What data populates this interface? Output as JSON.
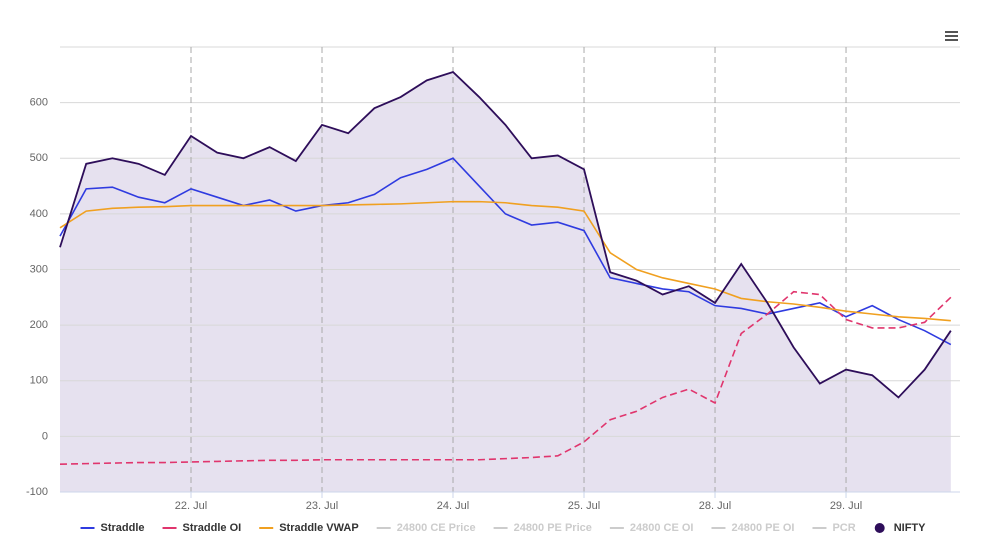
{
  "chart_data": {
    "type": "line",
    "x": [
      0,
      0.2,
      0.4,
      0.6,
      0.8,
      1,
      1.2,
      1.4,
      1.6,
      1.8,
      2,
      2.2,
      2.4,
      2.6,
      2.8,
      3,
      3.2,
      3.4,
      3.6,
      3.8,
      4,
      4.2,
      4.4,
      4.6,
      4.8,
      5,
      5.2,
      5.4,
      5.6,
      5.8,
      6,
      6.2,
      6.4,
      6.6,
      6.8
    ],
    "xlim": [
      0,
      6.87
    ],
    "xticks": [
      {
        "value": 1,
        "label": "22. Jul"
      },
      {
        "value": 2,
        "label": "23. Jul"
      },
      {
        "value": 3,
        "label": "24. Jul"
      },
      {
        "value": 4,
        "label": "25. Jul"
      },
      {
        "value": 5,
        "label": "28. Jul"
      },
      {
        "value": 6,
        "label": "29. Jul"
      }
    ],
    "ylim": [
      -100,
      700
    ],
    "yticks": [
      -100,
      0,
      100,
      200,
      300,
      400,
      500,
      600
    ],
    "grid": true,
    "legend": "bottom",
    "series": [
      {
        "name": "Straddle",
        "color": "#2f3be0",
        "values": [
          360,
          445,
          448,
          430,
          420,
          445,
          430,
          415,
          425,
          405,
          415,
          420,
          435,
          465,
          480,
          500,
          450,
          400,
          380,
          385,
          370,
          285,
          275,
          265,
          260,
          235,
          230,
          220,
          230,
          240,
          215,
          235,
          210,
          190,
          165
        ]
      },
      {
        "name": "Straddle OI",
        "color": "#e0356d",
        "dashed": true,
        "values": [
          -50,
          -49,
          -48,
          -47,
          -47,
          -46,
          -45,
          -44,
          -43,
          -43,
          -42,
          -42,
          -42,
          -42,
          -42,
          -42,
          -42,
          -40,
          -38,
          -35,
          -10,
          30,
          45,
          70,
          85,
          60,
          185,
          220,
          260,
          255,
          210,
          195,
          195,
          205,
          250
        ]
      },
      {
        "name": "Straddle VWAP",
        "color": "#f0a020",
        "values": [
          375,
          405,
          410,
          412,
          413,
          415,
          415,
          415,
          415,
          415,
          415,
          416,
          417,
          418,
          420,
          422,
          422,
          420,
          415,
          412,
          405,
          330,
          300,
          285,
          275,
          265,
          248,
          242,
          238,
          232,
          225,
          220,
          215,
          212,
          208
        ]
      },
      {
        "name": "24800 CE Price",
        "visible": false
      },
      {
        "name": "24800 PE Price",
        "visible": false
      },
      {
        "name": "24800 CE OI",
        "visible": false
      },
      {
        "name": "24800 PE OI",
        "visible": false
      },
      {
        "name": "PCR",
        "visible": false
      },
      {
        "name": "NIFTY",
        "color": "#2e0e5a",
        "area_color": "#e6e1ef",
        "area": true,
        "values": [
          340,
          490,
          500,
          490,
          470,
          540,
          510,
          500,
          520,
          495,
          560,
          545,
          590,
          610,
          640,
          655,
          610,
          560,
          500,
          505,
          480,
          295,
          280,
          255,
          270,
          240,
          310,
          240,
          160,
          95,
          120,
          110,
          70,
          120,
          190
        ]
      }
    ]
  }
}
